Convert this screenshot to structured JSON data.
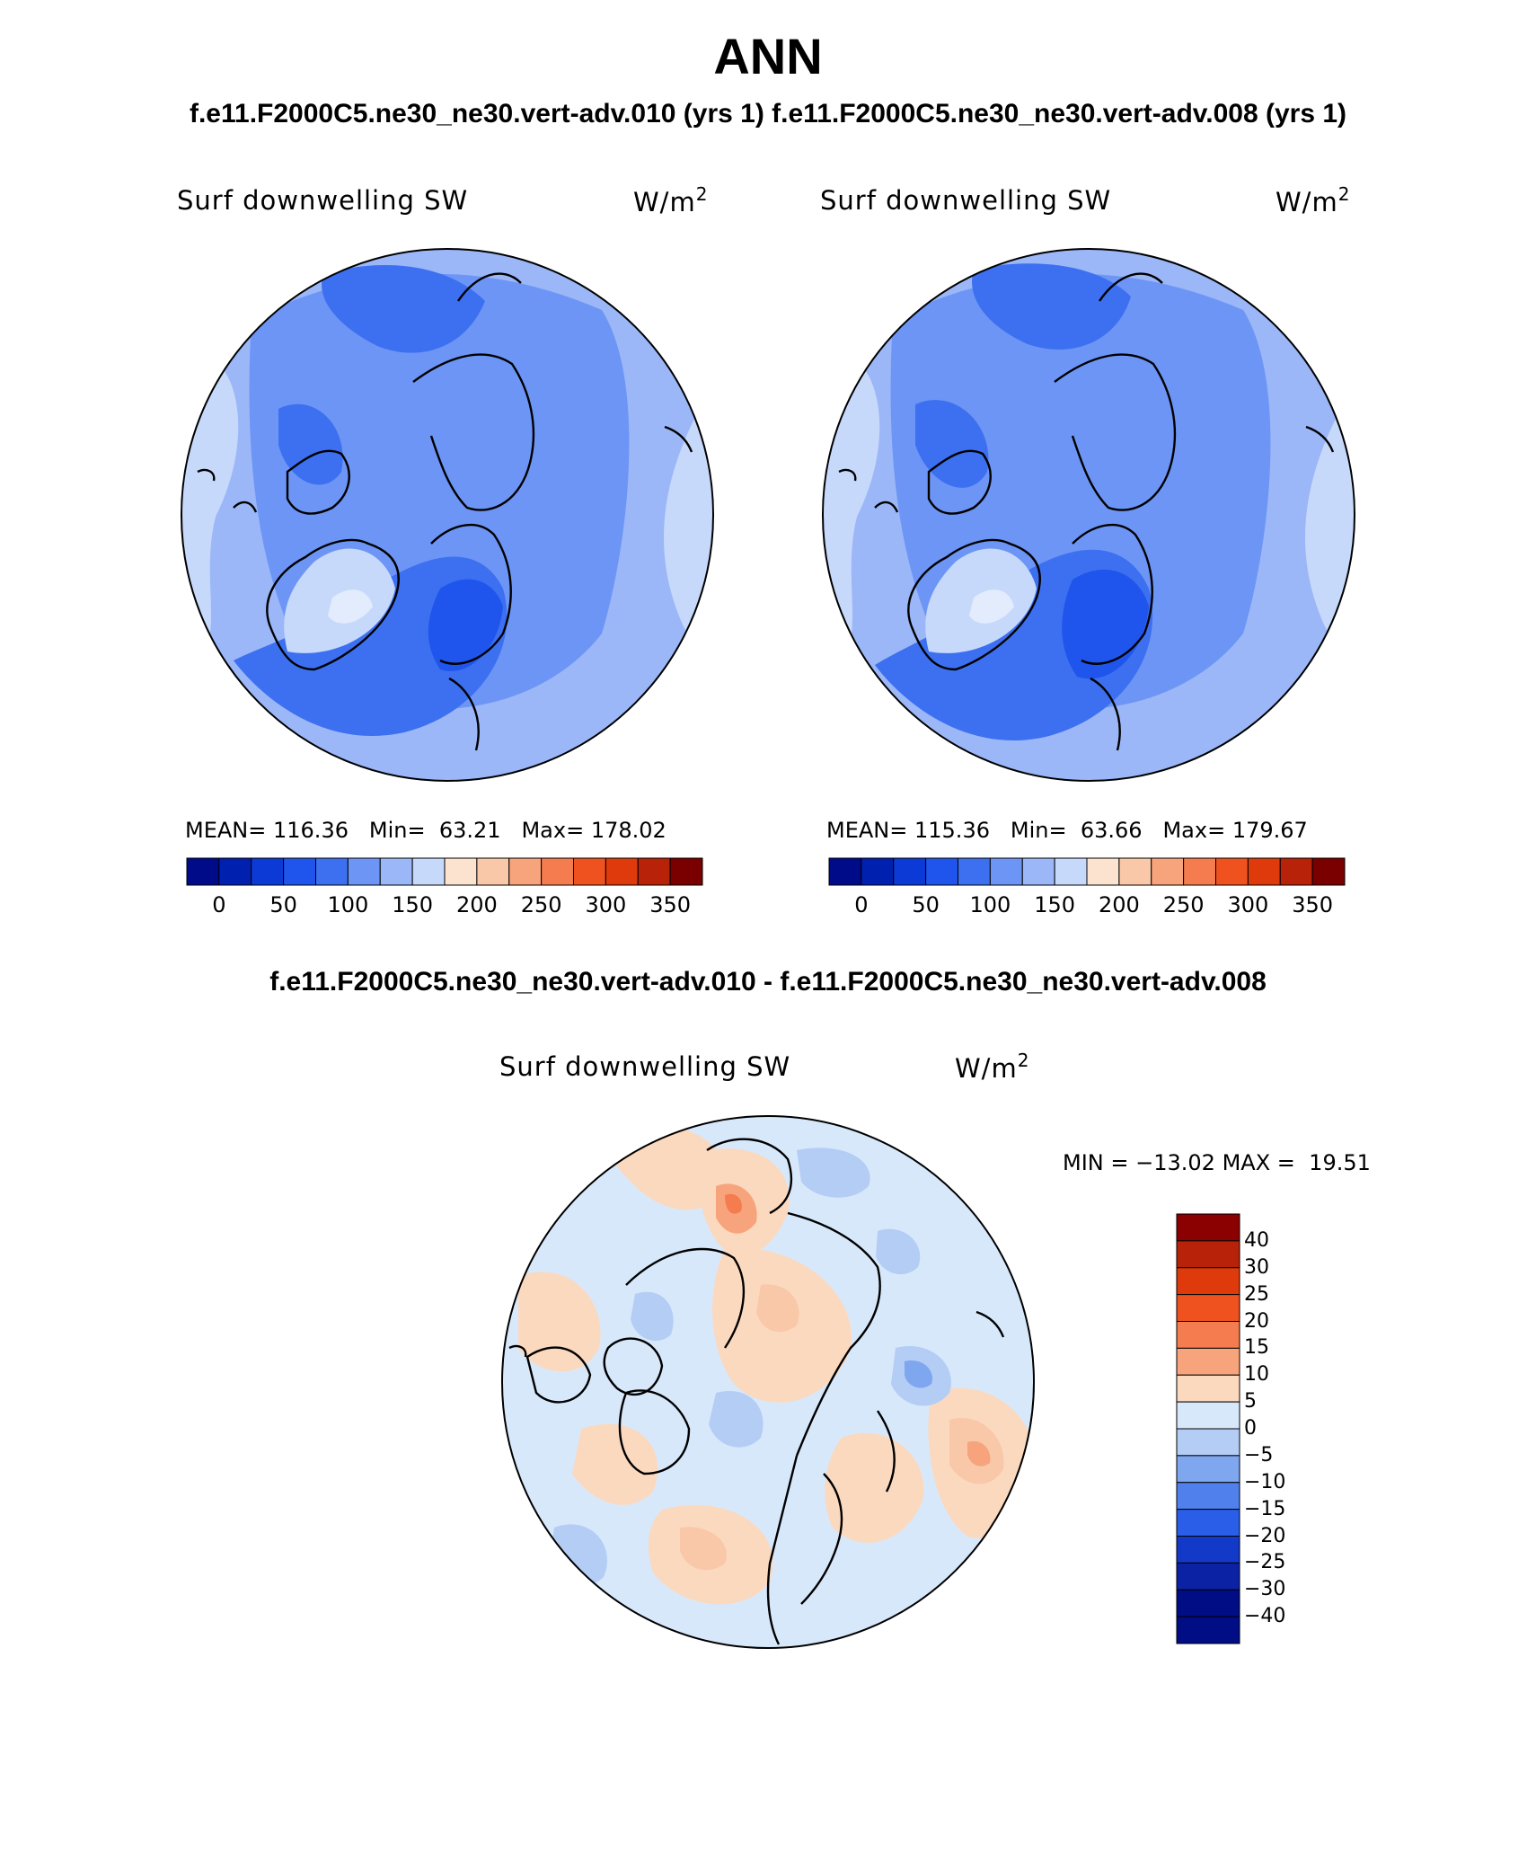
{
  "header": {
    "title": "ANN",
    "cases_line": "f.e11.F2000C5.ne30_ne30.vert-adv.010 (yrs 1) f.e11.F2000C5.ne30_ne30.vert-adv.008 (yrs 1)",
    "diff_title": "f.e11.F2000C5.ne30_ne30.vert-adv.010 - f.e11.F2000C5.ne30_ne30.vert-adv.008"
  },
  "variable": "Surf downwelling SW",
  "units": {
    "base": "W/m",
    "exp": "2"
  },
  "panels": [
    {
      "case": "f.e11.F2000C5.ne30_ne30.vert-adv.010",
      "stats": {
        "mean_label": "MEAN=",
        "mean": "116.36",
        "min_label": "Min=",
        "min": "63.21",
        "max_label": "Max=",
        "max": "178.02"
      },
      "palette": "abs"
    },
    {
      "case": "f.e11.F2000C5.ne30_ne30.vert-adv.008",
      "stats": {
        "mean_label": "MEAN=",
        "mean": "115.36",
        "min_label": "Min=",
        "min": "63.66",
        "max_label": "Max=",
        "max": "179.67"
      },
      "palette": "abs"
    }
  ],
  "abs_colorbar": {
    "colors": [
      "#000b8a",
      "#0021b0",
      "#0b3ad6",
      "#1f55ec",
      "#3c70f0",
      "#6d95f5",
      "#9bb7f7",
      "#c7d9fb",
      "#fbe3cf",
      "#f9c8a8",
      "#f7a47c",
      "#f57c4f",
      "#f0521f",
      "#df3a0b",
      "#b82208",
      "#7a0000"
    ],
    "ticks": [
      "0",
      "50",
      "100",
      "150",
      "200",
      "250",
      "300",
      "350"
    ]
  },
  "diff_panel": {
    "stats": {
      "min_label": "MIN =",
      "min": "−13.02",
      "max_label": "MAX =",
      "max": "19.51"
    },
    "colorbar": {
      "colors": [
        "#8b0000",
        "#b82208",
        "#df3a0b",
        "#f0521f",
        "#f57c4f",
        "#f7a47c",
        "#fbd9bf",
        "#d8e8fb",
        "#b3cdf5",
        "#7ea7ef",
        "#4f80ec",
        "#2a5ee8",
        "#1339c9",
        "#0a22a3",
        "#000d85"
      ],
      "ticks": [
        "40",
        "30",
        "25",
        "20",
        "15",
        "10",
        "5",
        "0",
        "−5",
        "−10",
        "−15",
        "−20",
        "−25",
        "−30",
        "−40"
      ]
    }
  }
}
